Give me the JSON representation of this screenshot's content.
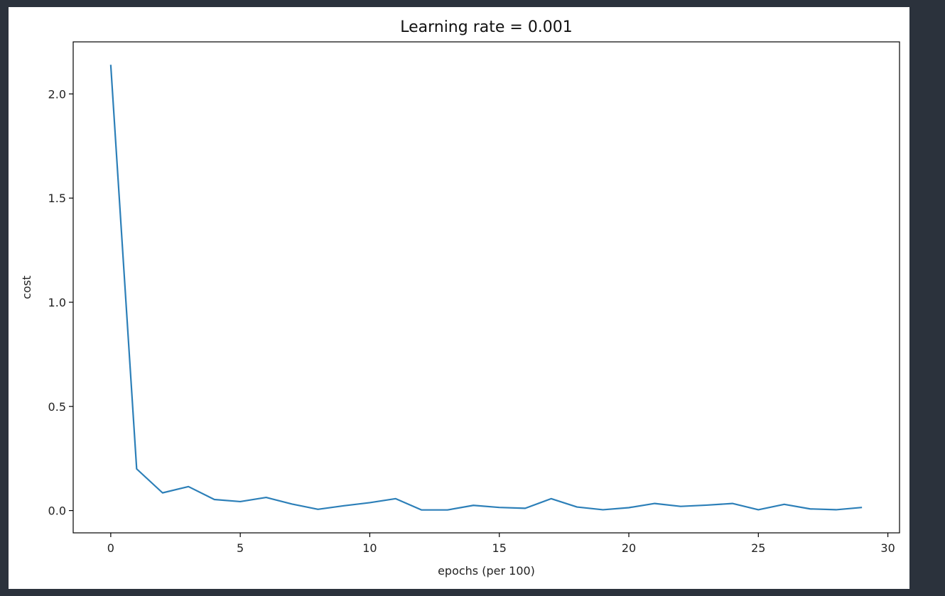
{
  "colors": {
    "page_background": "#2b323c",
    "figure_background": "#ffffff",
    "series_line": "#2c7fb8",
    "axis": "#000000"
  },
  "chart_data": {
    "type": "line",
    "title": "Learning rate = 0.001",
    "xlabel": "epochs (per 100)",
    "ylabel": "cost",
    "xlim": [
      -1.45,
      30.45
    ],
    "ylim": [
      -0.107,
      2.25
    ],
    "xticks": [
      0,
      5,
      10,
      15,
      20,
      25,
      30
    ],
    "xtick_labels": [
      "0",
      "5",
      "10",
      "15",
      "20",
      "25",
      "30"
    ],
    "yticks": [
      0.0,
      0.5,
      1.0,
      1.5,
      2.0
    ],
    "ytick_labels": [
      "0.0",
      "0.5",
      "1.0",
      "1.5",
      "2.0"
    ],
    "grid": false,
    "series": [
      {
        "name": "cost",
        "x": [
          0,
          1,
          2,
          3,
          4,
          5,
          6,
          7,
          8,
          9,
          10,
          11,
          12,
          13,
          14,
          15,
          16,
          17,
          18,
          19,
          20,
          21,
          22,
          23,
          24,
          25,
          26,
          27,
          28,
          29
        ],
        "values": [
          2.14,
          0.2,
          0.085,
          0.115,
          0.053,
          0.043,
          0.063,
          0.031,
          0.006,
          0.023,
          0.038,
          0.057,
          0.003,
          0.003,
          0.025,
          0.015,
          0.011,
          0.057,
          0.017,
          0.004,
          0.014,
          0.034,
          0.02,
          0.026,
          0.034,
          0.004,
          0.03,
          0.008,
          0.004,
          0.015
        ]
      }
    ]
  }
}
